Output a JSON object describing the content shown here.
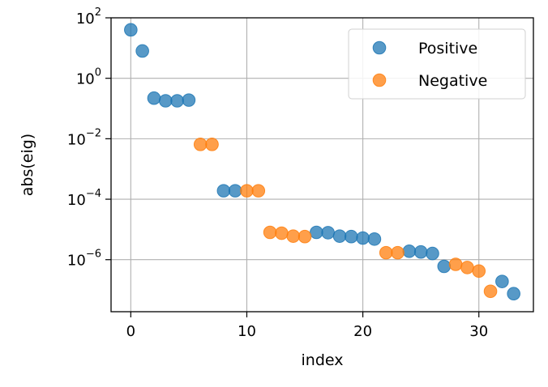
{
  "chart_data": {
    "type": "scatter",
    "title": "",
    "xlabel": "index",
    "ylabel": "abs(eig)",
    "xlim": [
      -1.7,
      34.7
    ],
    "ylim": [
      1.9e-08,
      100
    ],
    "yscale": "log",
    "grid": true,
    "legend_position": "top-right",
    "x_ticks": [
      0,
      10,
      20,
      30
    ],
    "x_tick_labels": [
      "0",
      "10",
      "20",
      "30"
    ],
    "y_ticks": [
      1e-06,
      0.0001,
      0.01,
      1,
      100
    ],
    "y_tick_labels": [
      {
        "base": "10",
        "exp": "−6"
      },
      {
        "base": "10",
        "exp": "−4"
      },
      {
        "base": "10",
        "exp": "−2"
      },
      {
        "base": "10",
        "exp": "0"
      },
      {
        "base": "10",
        "exp": "2"
      }
    ],
    "series": [
      {
        "name": "Positive",
        "color": "#1f77b4",
        "points": [
          [
            0,
            40
          ],
          [
            1,
            8
          ],
          [
            2,
            0.22
          ],
          [
            3,
            0.18
          ],
          [
            4,
            0.18
          ],
          [
            5,
            0.19
          ],
          [
            8,
            0.00019
          ],
          [
            9,
            0.00019
          ],
          [
            16,
            8e-06
          ],
          [
            17,
            7.8e-06
          ],
          [
            18,
            6e-06
          ],
          [
            19,
            5.8e-06
          ],
          [
            20,
            5.2e-06
          ],
          [
            21,
            4.8e-06
          ],
          [
            24,
            1.9e-06
          ],
          [
            25,
            1.8e-06
          ],
          [
            26,
            1.6e-06
          ],
          [
            27,
            6e-07
          ],
          [
            32,
            1.9e-07
          ],
          [
            33,
            7.5e-08
          ]
        ]
      },
      {
        "name": "Negative",
        "color": "#ff7f0e",
        "points": [
          [
            6,
            0.0065
          ],
          [
            7,
            0.0065
          ],
          [
            10,
            0.00019
          ],
          [
            11,
            0.00019
          ],
          [
            12,
            8e-06
          ],
          [
            13,
            7.5e-06
          ],
          [
            14,
            6e-06
          ],
          [
            15,
            5.8e-06
          ],
          [
            22,
            1.7e-06
          ],
          [
            23,
            1.7e-06
          ],
          [
            28,
            7e-07
          ],
          [
            29,
            5.5e-07
          ],
          [
            30,
            4.2e-07
          ],
          [
            31,
            9e-08
          ]
        ]
      }
    ]
  }
}
